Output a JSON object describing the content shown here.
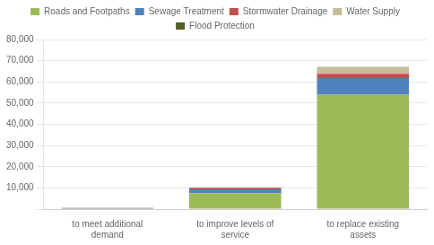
{
  "chart_data": {
    "type": "bar",
    "stacked": true,
    "categories": [
      "to meet additional\ndemand",
      "to improve levels of\nservice",
      "to replace existing\nassets"
    ],
    "series": [
      {
        "name": "Roads and Footpaths",
        "color": "#9bbb59",
        "values": [
          200,
          7500,
          54000
        ]
      },
      {
        "name": "Sewage Treatment",
        "color": "#4f81bd",
        "values": [
          150,
          1800,
          7800
        ]
      },
      {
        "name": "Stormwater Drainage",
        "color": "#c0504d",
        "values": [
          100,
          600,
          2000
        ]
      },
      {
        "name": "Water Supply",
        "color": "#c4bd97",
        "values": [
          0,
          0,
          3000
        ]
      },
      {
        "name": "Flood Protection",
        "color": "#4e6128",
        "values": [
          50,
          300,
          200
        ]
      }
    ],
    "ylim": [
      0,
      80000
    ],
    "yticks": [
      {
        "value": 0,
        "label": ""
      },
      {
        "value": 10000,
        "label": "10,000"
      },
      {
        "value": 20000,
        "label": "20,000"
      },
      {
        "value": 30000,
        "label": "30,000"
      },
      {
        "value": 40000,
        "label": "40,000"
      },
      {
        "value": 50000,
        "label": "50,000"
      },
      {
        "value": 60000,
        "label": "60,000"
      },
      {
        "value": 70000,
        "label": "70,000"
      },
      {
        "value": 80000,
        "label": "80,000"
      }
    ],
    "grid": true,
    "legend": "top"
  }
}
